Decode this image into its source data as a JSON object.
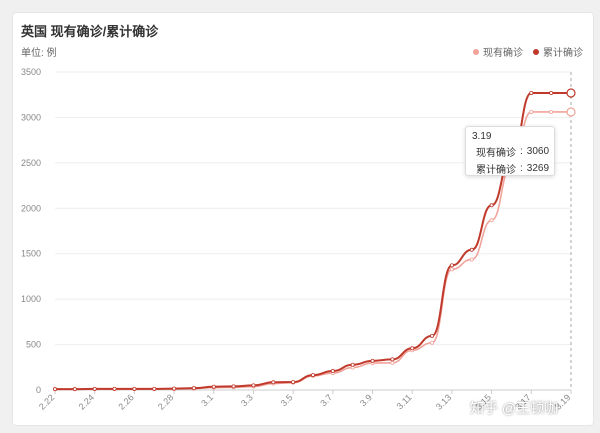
{
  "chart_data": {
    "type": "line",
    "title": "英国 现有确诊/累计确诊",
    "unit_label": "单位: 例",
    "ylim": [
      0,
      3500
    ],
    "yticks": [
      0,
      500,
      1000,
      1500,
      2000,
      2500,
      3000,
      3500
    ],
    "x": [
      "2.22",
      "2.23",
      "2.24",
      "2.25",
      "2.26",
      "2.27",
      "2.28",
      "2.29",
      "3.1",
      "3.2",
      "3.3",
      "3.4",
      "3.5",
      "3.6",
      "3.7",
      "3.8",
      "3.9",
      "3.10",
      "3.11",
      "3.12",
      "3.13",
      "3.14",
      "3.15",
      "3.16",
      "3.17",
      "3.18",
      "3.19"
    ],
    "xtick_labels": [
      "2.22",
      "2.24",
      "2.26",
      "2.28",
      "3.1",
      "3.3",
      "3.5",
      "3.7",
      "3.9",
      "3.11",
      "3.13",
      "3.15",
      "3.17",
      "3.19"
    ],
    "series": [
      {
        "name": "现有确诊",
        "color": "#f0a39a",
        "values": [
          8,
          8,
          9,
          9,
          9,
          11,
          11,
          15,
          27,
          30,
          38,
          71,
          81,
          155,
          186,
          247,
          296,
          299,
          437,
          520,
          1328,
          1437,
          1868,
          2472,
          3060,
          3060,
          3060
        ]
      },
      {
        "name": "累计确诊",
        "color": "#c0392b",
        "values": [
          9,
          9,
          13,
          13,
          13,
          13,
          15,
          20,
          36,
          40,
          51,
          85,
          87,
          164,
          209,
          278,
          321,
          337,
          459,
          596,
          1372,
          1543,
          2033,
          2563,
          3269,
          3269,
          3269
        ]
      }
    ],
    "tooltip": {
      "title": "3.19",
      "rows": [
        {
          "name": "现有确诊",
          "value": "3060"
        },
        {
          "name": "累计确诊",
          "value": "3269"
        }
      ]
    }
  },
  "watermark": "知乎 @王顿咖"
}
